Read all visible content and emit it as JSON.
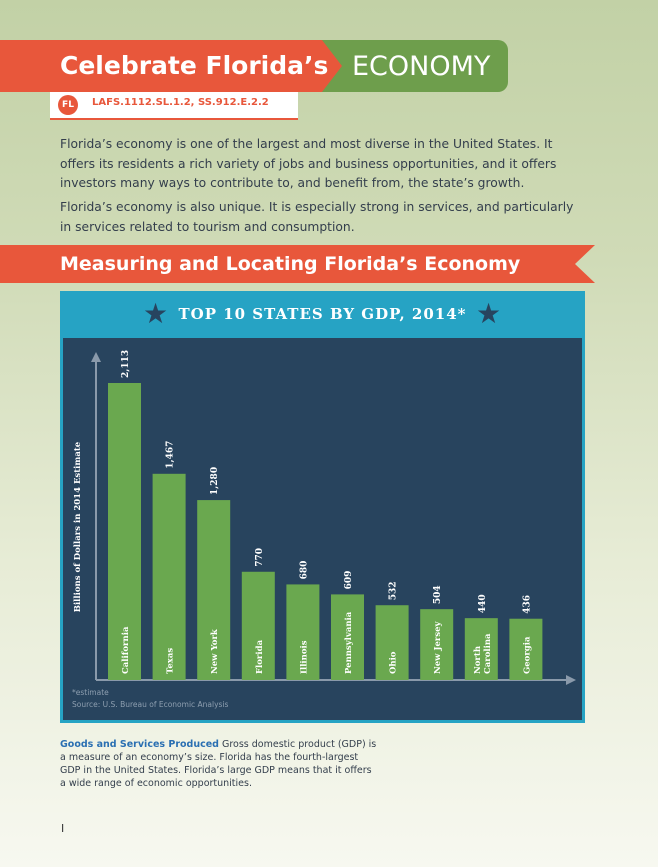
{
  "header": {
    "title": "Celebrate Florida’s",
    "accent": "ECONOMY",
    "badge": "FL",
    "standards": "LAFS.1112.SL.1.2, SS.912.E.2.2"
  },
  "intro": {
    "para1": "Florida’s economy is one of the largest and most diverse in the United States. It offers its residents a rich variety of jobs and business opportunities, and it offers investors many ways to contribute to, and benefit from, the state’s growth.",
    "para2": "Florida’s economy is also unique. It is especially strong in services, and particularly in services related to tourism and consumption."
  },
  "section": {
    "title": "Measuring and Locating Florida’s Economy"
  },
  "caption": {
    "lead": "Goods and Services Produced",
    "text": " Gross domestic product (GDP) is a measure of an economy’s size. Florida has the fourth-largest GDP in the United States. Florida’s large GDP means that it offers a wide range of economic opportunities."
  },
  "page_number": "I",
  "colors": {
    "orange": "#e8573b",
    "green": "#6e9e4c",
    "teal": "#26a3c4",
    "navy": "#28445e",
    "bar": "#6aa84f",
    "link_blue": "#2a6fb2"
  },
  "chart_data": {
    "type": "bar",
    "title": "TOP 10 STATES BY GDP, 2014*",
    "ylabel": "Billions of Dollars in 2014 Estimate",
    "xlabel": "",
    "categories": [
      "California",
      "Texas",
      "New York",
      "Florida",
      "Illinois",
      "Pennsylvania",
      "Ohio",
      "New Jersey",
      "North Carolina",
      "Georgia"
    ],
    "values": [
      2113,
      1467,
      1280,
      770,
      680,
      609,
      532,
      504,
      440,
      436
    ],
    "value_labels": [
      "2,113",
      "1,467",
      "1,280",
      "770",
      "680",
      "609",
      "532",
      "504",
      "440",
      "436"
    ],
    "ylim": [
      0,
      2113
    ],
    "grid": false,
    "notes": [
      "*estimate",
      "Source: U.S. Bureau of Economic Analysis"
    ]
  }
}
